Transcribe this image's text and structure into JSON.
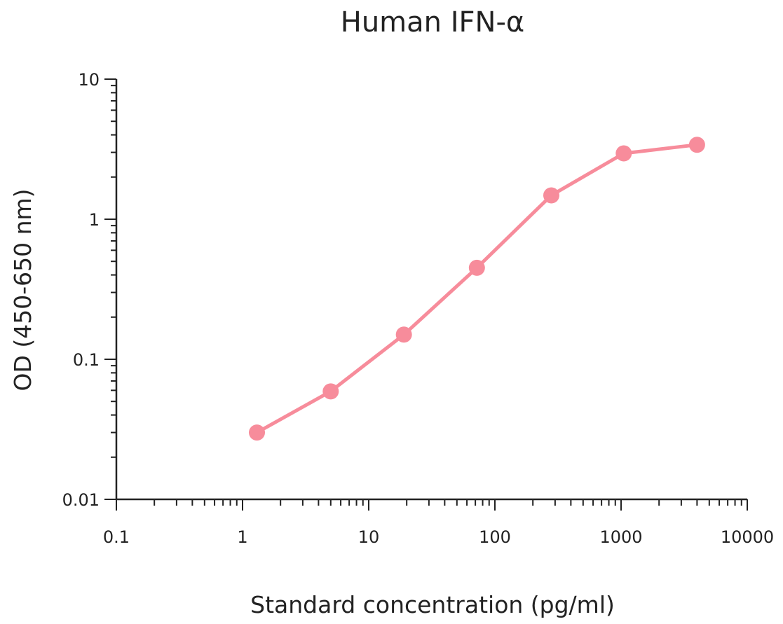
{
  "chart_data": {
    "type": "line",
    "title": "Human IFN-α",
    "xlabel": "Standard concentration (pg/ml)",
    "ylabel": "OD (450-650 nm)",
    "xscale": "log",
    "yscale": "log",
    "xlim": [
      0.1,
      10000
    ],
    "ylim": [
      0.01,
      10
    ],
    "x_ticks": [
      0.1,
      1,
      10,
      100,
      1000,
      10000
    ],
    "x_tick_labels": [
      "0.1",
      "1",
      "10",
      "100",
      "1000",
      "10000"
    ],
    "y_ticks": [
      0.01,
      0.1,
      1,
      10
    ],
    "y_tick_labels": [
      "0.01",
      "0.1",
      "1",
      "10"
    ],
    "grid": false,
    "legend": "none",
    "series": [
      {
        "color": "#f78c9b",
        "marker": "circle",
        "x": [
          1.3,
          5.0,
          19.0,
          72.0,
          280.0,
          1050.0,
          4000.0
        ],
        "y": [
          0.03,
          0.059,
          0.15,
          0.45,
          1.48,
          2.95,
          3.4
        ]
      }
    ]
  }
}
